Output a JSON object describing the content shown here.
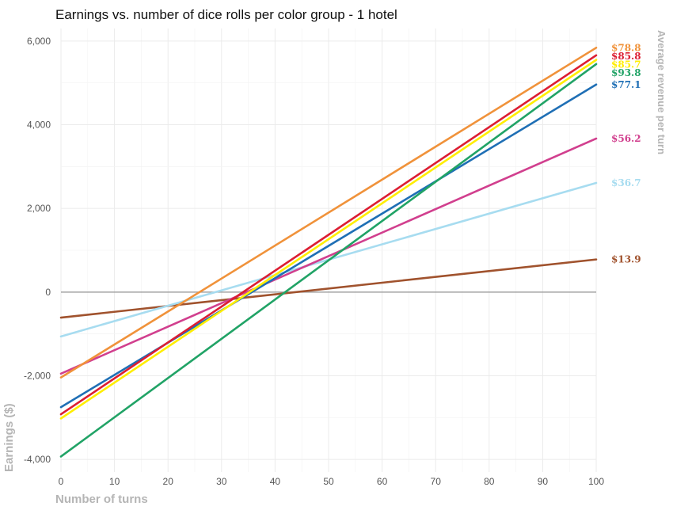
{
  "chart_data": {
    "type": "line",
    "title": "Earnings vs. number of dice rolls per color group - 1 hotel",
    "xlabel": "Number of turns",
    "ylabel": "Earnings ($)",
    "right_label": "Average revenue per turn",
    "xlim": [
      0,
      100
    ],
    "ylim": [
      -4300,
      6300
    ],
    "x_ticks": [
      0,
      10,
      20,
      30,
      40,
      50,
      60,
      70,
      80,
      90,
      100
    ],
    "y_ticks": [
      -4000,
      -2000,
      0,
      2000,
      4000,
      6000
    ],
    "y_tick_labels": [
      "-4,000",
      "-2,000",
      "0",
      "2,000",
      "4,000",
      "6,000"
    ],
    "grid": true,
    "zero_line": true,
    "series": [
      {
        "label": "$13.9",
        "color": "#a0522d",
        "x": [
          0,
          100
        ],
        "y": [
          -610,
          780
        ]
      },
      {
        "label": "$36.7",
        "color": "#a7dcf0",
        "x": [
          0,
          100
        ],
        "y": [
          -1060,
          2610
        ]
      },
      {
        "label": "$56.2",
        "color": "#d13f8e",
        "x": [
          0,
          100
        ],
        "y": [
          -1950,
          3670
        ]
      },
      {
        "label": "$77.1",
        "color": "#1f6fb5",
        "x": [
          0,
          100
        ],
        "y": [
          -2750,
          4960
        ]
      },
      {
        "label": "$93.8",
        "color": "#21a366",
        "x": [
          0,
          100
        ],
        "y": [
          -3930,
          5450
        ]
      },
      {
        "label": "$85.7",
        "color": "#ffee00",
        "x": [
          0,
          100
        ],
        "y": [
          -3020,
          5550
        ]
      },
      {
        "label": "$85.8",
        "color": "#dc1e32",
        "x": [
          0,
          100
        ],
        "y": [
          -2920,
          5660
        ]
      },
      {
        "label": "$78.8",
        "color": "#f0923a",
        "x": [
          0,
          100
        ],
        "y": [
          -2040,
          5840
        ]
      }
    ]
  }
}
